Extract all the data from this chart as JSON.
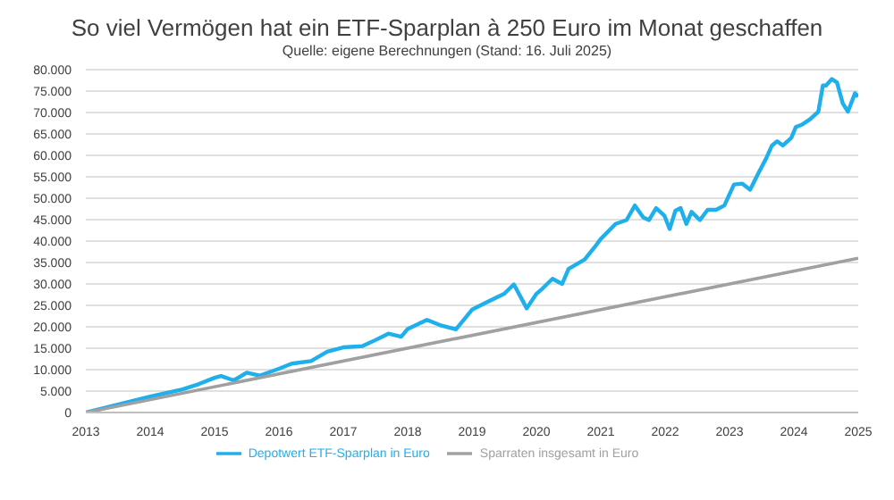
{
  "chart_data": {
    "type": "line",
    "title": "So viel Vermögen hat ein ETF-Sparplan à 250 Euro im Monat geschaffen",
    "subtitle": "Quelle: eigene Berechnungen (Stand: 16. Juli 2025)",
    "xlim": [
      2013,
      2025
    ],
    "xticks": [
      2013,
      2014,
      2015,
      2016,
      2017,
      2018,
      2019,
      2020,
      2021,
      2022,
      2023,
      2024,
      2025
    ],
    "ylim": [
      0,
      80000
    ],
    "yticks": [
      0,
      {
        "value": 5000,
        "label": "5.000"
      },
      {
        "value": 10000,
        "label": "10.000"
      },
      {
        "value": 15000,
        "label": "15.000"
      },
      {
        "value": 20000,
        "label": "20.000"
      },
      {
        "value": 25000,
        "label": "25.000"
      },
      {
        "value": 30000,
        "label": "30.000"
      },
      {
        "value": 35000,
        "label": "35.000"
      },
      {
        "value": 40000,
        "label": "40.000"
      },
      {
        "value": 45000,
        "label": "45.000"
      },
      {
        "value": 50000,
        "label": "50.000"
      },
      {
        "value": 55000,
        "label": "55.000"
      },
      {
        "value": 60000,
        "label": "60.000"
      },
      {
        "value": 65000,
        "label": "65.000"
      },
      {
        "value": 70000,
        "label": "70.000"
      },
      {
        "value": 75000,
        "label": "75.000"
      },
      {
        "value": 80000,
        "label": "80.000"
      }
    ],
    "grid": "y",
    "legend": "bottom",
    "marker": "none",
    "line_style": "solid",
    "series": [
      {
        "name": "Depotwert ETF-Sparplan in Euro",
        "color": "#1fb0ec",
        "x": [
          2013,
          2014,
          2014.5,
          2014.75,
          2015,
          2015.1,
          2015.3,
          2015.5,
          2015.7,
          2016,
          2016.2,
          2016.5,
          2016.75,
          2017,
          2017.3,
          2017.5,
          2017.7,
          2017.9,
          2018,
          2018.3,
          2018.5,
          2018.75,
          2019,
          2019.25,
          2019.5,
          2019.65,
          2019.85,
          2020,
          2020.1,
          2020.25,
          2020.4,
          2020.5,
          2020.75,
          2020.9,
          2021,
          2021.23,
          2021.4,
          2021.53,
          2021.66,
          2021.75,
          2021.86,
          2021.99,
          2022.07,
          2022.16,
          2022.24,
          2022.33,
          2022.41,
          2022.54,
          2022.66,
          2022.79,
          2022.92,
          2023.07,
          2023.2,
          2023.32,
          2023.45,
          2023.57,
          2023.66,
          2023.74,
          2023.83,
          2023.96,
          2024.03,
          2024.13,
          2024.25,
          2024.38,
          2024.45,
          2024.5,
          2024.59,
          2024.67,
          2024.76,
          2024.84,
          2024.95,
          2025
        ],
        "values": [
          0,
          3700,
          5400,
          6600,
          8100,
          8500,
          7500,
          9300,
          8600,
          10200,
          11400,
          12000,
          14200,
          15200,
          15500,
          16900,
          18400,
          17700,
          19500,
          21600,
          20400,
          19400,
          24000,
          25900,
          27700,
          29900,
          24300,
          27700,
          29000,
          31200,
          30000,
          33500,
          35700,
          38500,
          40500,
          44000,
          44900,
          48300,
          45500,
          44900,
          47700,
          45900,
          42800,
          47100,
          47700,
          44000,
          46800,
          44900,
          47300,
          47300,
          48300,
          53200,
          53400,
          52000,
          55900,
          59300,
          62300,
          63300,
          62300,
          64100,
          66600,
          67200,
          68400,
          70200,
          76300,
          76300,
          77800,
          77000,
          72100,
          70200,
          74500,
          73700
        ]
      },
      {
        "name": "Sparraten insgesamt in Euro",
        "color": "#a0a0a0",
        "x": [
          2013,
          2025
        ],
        "values": [
          0,
          36000
        ]
      }
    ]
  }
}
